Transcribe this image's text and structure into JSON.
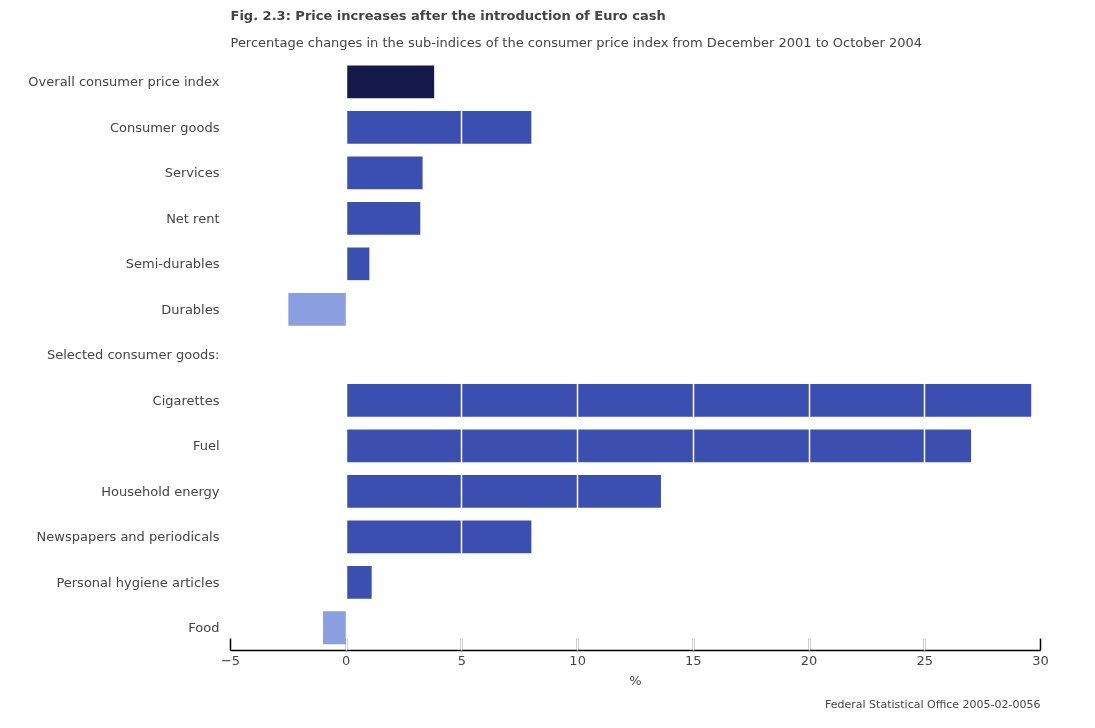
{
  "chart_data": {
    "type": "bar",
    "orientation": "horizontal",
    "title": "Fig. 2.3: Price increases after the introduction of Euro cash",
    "subtitle": "Percentage changes in the sub-indices of the consumer price index from December 2001 to October 2004",
    "categories": [
      "Overall consumer price index",
      "Consumer goods",
      "Services",
      "Net rent",
      "Semi-durables",
      "Durables",
      null,
      "Cigarettes",
      "Fuel",
      "Household energy",
      "Newspapers and periodicals",
      "Personal hygiene articles",
      "Food"
    ],
    "values": [
      3.8,
      8.0,
      3.3,
      3.2,
      1.0,
      -2.5,
      null,
      29.6,
      27.0,
      13.6,
      8.0,
      1.1,
      -1.0
    ],
    "colors": [
      "#151a4a",
      "#3a4fb0",
      "#3a4fb0",
      "#3a4fb0",
      "#3a4fb0",
      "#8a9ee0",
      "#3a4fb0",
      "#3a4fb0",
      "#3a4fb0",
      "#3a4fb0",
      "#3a4fb0",
      "#3a4fb0",
      "#8a9ee0"
    ],
    "xlabel": "%",
    "xlim": [
      -5,
      30
    ],
    "xticks": [
      -5,
      0,
      5,
      10,
      15,
      20,
      25,
      30
    ],
    "grid": "x",
    "annotations": [
      "Selected consumer goods:",
      "Federal Statistical Office 2005-02-0056"
    ]
  }
}
